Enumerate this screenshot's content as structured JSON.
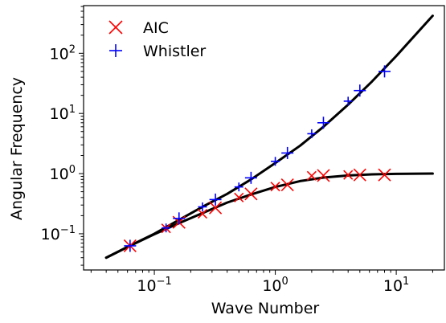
{
  "chart_data": {
    "type": "scatter",
    "xlabel": "Wave Number",
    "ylabel": "Angular Frequency",
    "xscale": "log",
    "yscale": "log",
    "xlim": [
      0.026,
      25
    ],
    "ylim": [
      0.025,
      620
    ],
    "grid": false,
    "legend_position": "top-left",
    "x_ticks": [
      {
        "value": 0.1,
        "base": "10",
        "exp": "−1"
      },
      {
        "value": 1,
        "base": "10",
        "exp": "0"
      },
      {
        "value": 10,
        "base": "10",
        "exp": "1"
      }
    ],
    "y_ticks": [
      {
        "value": 0.1,
        "base": "10",
        "exp": "−1"
      },
      {
        "value": 1,
        "base": "10",
        "exp": "0"
      },
      {
        "value": 10,
        "base": "10",
        "exp": "1"
      },
      {
        "value": 100,
        "base": "10",
        "exp": "2"
      }
    ],
    "series": [
      {
        "name": "AIC",
        "marker": "x",
        "color": "#ff0000",
        "points": [
          {
            "x": 0.063,
            "y": 0.063
          },
          {
            "x": 0.125,
            "y": 0.123
          },
          {
            "x": 0.16,
            "y": 0.155
          },
          {
            "x": 0.25,
            "y": 0.215
          },
          {
            "x": 0.32,
            "y": 0.27
          },
          {
            "x": 0.5,
            "y": 0.4
          },
          {
            "x": 0.63,
            "y": 0.46
          },
          {
            "x": 1.0,
            "y": 0.61
          },
          {
            "x": 1.26,
            "y": 0.65
          },
          {
            "x": 2.0,
            "y": 0.92
          },
          {
            "x": 2.5,
            "y": 0.93
          },
          {
            "x": 4.0,
            "y": 0.95
          },
          {
            "x": 5.0,
            "y": 0.95
          },
          {
            "x": 8.0,
            "y": 0.95
          }
        ]
      },
      {
        "name": "Whistler",
        "marker": "+",
        "color": "#0000ff",
        "points": [
          {
            "x": 0.063,
            "y": 0.063
          },
          {
            "x": 0.125,
            "y": 0.125
          },
          {
            "x": 0.16,
            "y": 0.18
          },
          {
            "x": 0.25,
            "y": 0.28
          },
          {
            "x": 0.32,
            "y": 0.37
          },
          {
            "x": 0.5,
            "y": 0.6
          },
          {
            "x": 0.63,
            "y": 0.85
          },
          {
            "x": 1.0,
            "y": 1.6
          },
          {
            "x": 1.26,
            "y": 2.2
          },
          {
            "x": 2.0,
            "y": 4.6
          },
          {
            "x": 2.5,
            "y": 7.0
          },
          {
            "x": 4.0,
            "y": 16
          },
          {
            "x": 5.0,
            "y": 24
          },
          {
            "x": 8.0,
            "y": 50
          }
        ]
      }
    ],
    "curves": [
      {
        "color": "#000000",
        "points": [
          [
            0.04,
            0.04
          ],
          [
            0.0625,
            0.0625
          ],
          [
            0.1,
            0.098
          ],
          [
            0.16,
            0.15
          ],
          [
            0.25,
            0.22
          ],
          [
            0.4,
            0.33
          ],
          [
            0.63,
            0.45
          ],
          [
            1.0,
            0.6
          ],
          [
            1.6,
            0.75
          ],
          [
            2.5,
            0.86
          ],
          [
            4.0,
            0.93
          ],
          [
            6.3,
            0.97
          ],
          [
            10,
            0.99
          ],
          [
            20,
            1.0
          ]
        ]
      },
      {
        "color": "#000000",
        "points": [
          [
            0.04,
            0.04
          ],
          [
            0.0625,
            0.063
          ],
          [
            0.1,
            0.1
          ],
          [
            0.16,
            0.17
          ],
          [
            0.25,
            0.28
          ],
          [
            0.4,
            0.46
          ],
          [
            0.63,
            0.8
          ],
          [
            1.0,
            1.5
          ],
          [
            1.6,
            2.9
          ],
          [
            2.5,
            6.0
          ],
          [
            4.0,
            14
          ],
          [
            6.3,
            34
          ],
          [
            10,
            90
          ],
          [
            20,
            420
          ]
        ]
      }
    ]
  }
}
